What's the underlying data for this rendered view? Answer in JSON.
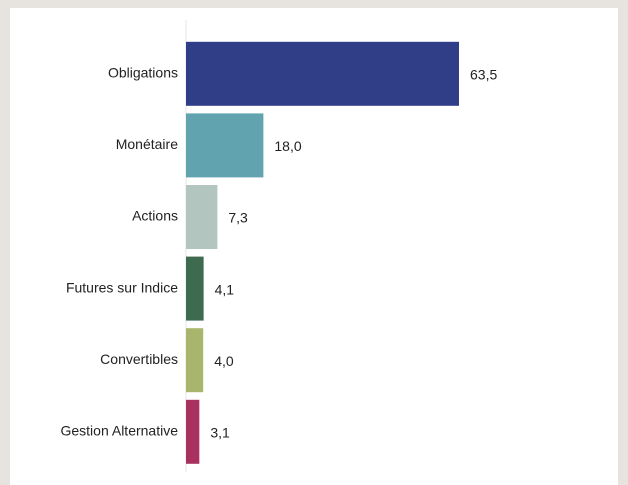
{
  "chart_data": {
    "type": "barh",
    "categories": [
      "Obligations",
      "Monétaire",
      "Actions",
      "Futures sur Indice",
      "Convertibles",
      "Gestion Alternative"
    ],
    "values": [
      63.5,
      18.0,
      7.3,
      4.1,
      4.0,
      3.1
    ],
    "value_labels": [
      "63,5",
      "18,0",
      "7,3",
      "4,1",
      "4,0",
      "3,1"
    ],
    "colors": [
      "#2f3e86",
      "#61a4b0",
      "#b2c5be",
      "#3e6a4f",
      "#a8b56c",
      "#a8315f"
    ]
  }
}
